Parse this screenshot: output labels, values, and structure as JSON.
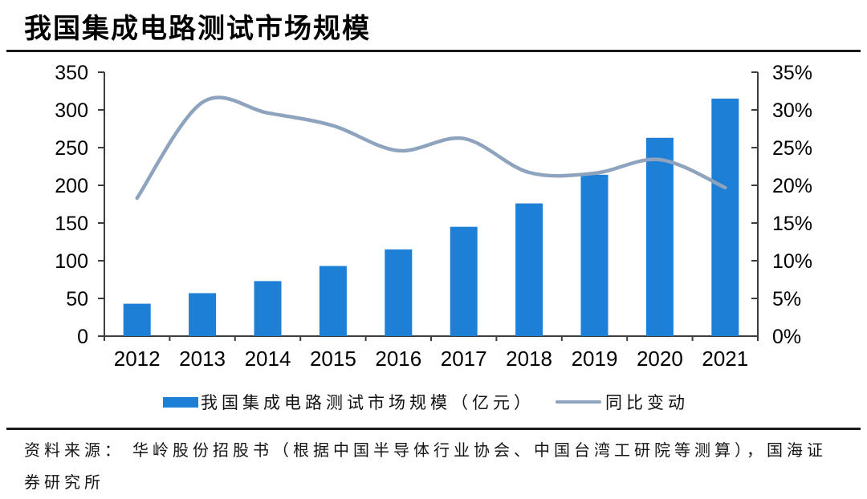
{
  "page": {
    "title": "我国集成电路测试市场规模",
    "source_line1": "资料来源： 华岭股份招股书（根据中国半导体行业协会、中国台湾工研院等测算），国海证",
    "source_line2": "券研究所"
  },
  "chart_data": {
    "type": "bar",
    "subtype": "bar-line-combo",
    "title": "我国集成电路测试市场规模",
    "categories": [
      "2012",
      "2013",
      "2014",
      "2015",
      "2016",
      "2017",
      "2018",
      "2019",
      "2020",
      "2021"
    ],
    "series": [
      {
        "name": "我国集成电路测试市场规模（亿元）",
        "type": "bar",
        "axis": "left",
        "color": "#1e7fd6",
        "values": [
          43,
          57,
          73,
          93,
          115,
          145,
          176,
          214,
          263,
          315
        ]
      },
      {
        "name": "同比变动",
        "type": "line",
        "axis": "right",
        "color": "#8ea3bd",
        "values": [
          18.3,
          31.0,
          29.6,
          27.9,
          24.6,
          26.2,
          21.7,
          21.6,
          23.4,
          19.7
        ]
      }
    ],
    "left_axis": {
      "min": 0,
      "max": 350,
      "step": 50,
      "labels": [
        "0",
        "50",
        "100",
        "150",
        "200",
        "250",
        "300",
        "350"
      ]
    },
    "right_axis": {
      "min": 0,
      "max": 35,
      "step": 5,
      "labels": [
        "0%",
        "5%",
        "10%",
        "15%",
        "20%",
        "25%",
        "30%",
        "35%"
      ]
    },
    "legend_position": "bottom",
    "grid": false,
    "axis_color": "#3d3d3d"
  }
}
